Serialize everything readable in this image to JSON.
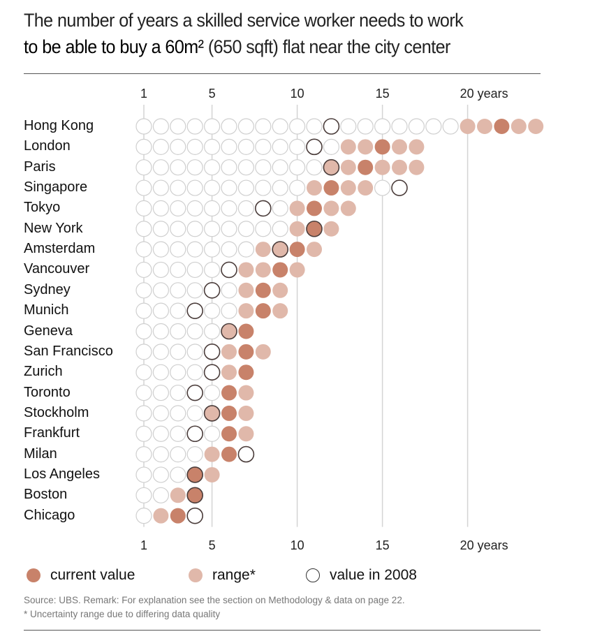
{
  "title": {
    "line1": "The number of years a skilled service worker needs to work",
    "line2_bold": "to be able to buy a 60m² ",
    "line2_rest": "(650 sqft) flat near the city center"
  },
  "colors": {
    "current": "#c8826a",
    "range": "#e0b8aa",
    "outline2008": "#4a3c3a",
    "empty": "#cfcfcf",
    "grid": "#d4d4d4"
  },
  "legend": {
    "current": "current value",
    "range": "range*",
    "v2008": "value in 2008"
  },
  "footer": {
    "source": "Source: UBS. Remark: For explanation see the section on Methodology & data on page 22.",
    "remark": "* Uncertainty range due to differing data quality"
  },
  "chart_data": {
    "type": "dot-matrix",
    "title": "The number of years a skilled service worker needs to work to be able to buy a 60m² (650 sqft) flat near the city center",
    "xlabel": "years",
    "xticks": [
      1,
      5,
      10,
      15,
      20
    ],
    "xtick_labels": [
      "1",
      "5",
      "10",
      "15",
      "20 years"
    ],
    "xlim": [
      1,
      24
    ],
    "cities": [
      {
        "name": "Hong Kong",
        "current": 22,
        "range": [
          20,
          24
        ],
        "v2008": 12,
        "max": 24
      },
      {
        "name": "London",
        "current": 15,
        "range": [
          13,
          17
        ],
        "v2008": 11,
        "max": 17
      },
      {
        "name": "Paris",
        "current": 14,
        "range": [
          12,
          17
        ],
        "v2008": 12,
        "max": 17
      },
      {
        "name": "Singapore",
        "current": 12,
        "range": [
          11,
          14
        ],
        "v2008": 16,
        "max": 16
      },
      {
        "name": "Tokyo",
        "current": 11,
        "range": [
          10,
          13
        ],
        "v2008": 8,
        "max": 13
      },
      {
        "name": "New York",
        "current": 11,
        "range": [
          10,
          12
        ],
        "v2008": 11,
        "max": 12
      },
      {
        "name": "Amsterdam",
        "current": 10,
        "range": [
          8,
          11
        ],
        "v2008": 9,
        "max": 11
      },
      {
        "name": "Vancouver",
        "current": 9,
        "range": [
          7,
          10
        ],
        "v2008": 6,
        "max": 10
      },
      {
        "name": "Sydney",
        "current": 8,
        "range": [
          7,
          9
        ],
        "v2008": 5,
        "max": 9
      },
      {
        "name": "Munich",
        "current": 8,
        "range": [
          7,
          9
        ],
        "v2008": 4,
        "max": 9
      },
      {
        "name": "Geneva",
        "current": 7,
        "range": [
          6,
          7
        ],
        "v2008": 6,
        "max": 7
      },
      {
        "name": "San Francisco",
        "current": 7,
        "range": [
          6,
          8
        ],
        "v2008": 5,
        "max": 8
      },
      {
        "name": "Zurich",
        "current": 7,
        "range": [
          6,
          7
        ],
        "v2008": 5,
        "max": 7
      },
      {
        "name": "Toronto",
        "current": 6,
        "range": [
          6,
          7
        ],
        "v2008": 4,
        "max": 7
      },
      {
        "name": "Stockholm",
        "current": 6,
        "range": [
          5,
          7
        ],
        "v2008": 5,
        "max": 7
      },
      {
        "name": "Frankfurt",
        "current": 6,
        "range": [
          6,
          7
        ],
        "v2008": 4,
        "max": 7
      },
      {
        "name": "Milan",
        "current": 6,
        "range": [
          5,
          6
        ],
        "v2008": 7,
        "max": 7
      },
      {
        "name": "Los Angeles",
        "current": 4,
        "range": [
          4,
          5
        ],
        "v2008": 4,
        "max": 5
      },
      {
        "name": "Boston",
        "current": 4,
        "range": [
          3,
          4
        ],
        "v2008": 4,
        "max": 4
      },
      {
        "name": "Chicago",
        "current": 3,
        "range": [
          2,
          3
        ],
        "v2008": 4,
        "max": 4
      }
    ]
  }
}
